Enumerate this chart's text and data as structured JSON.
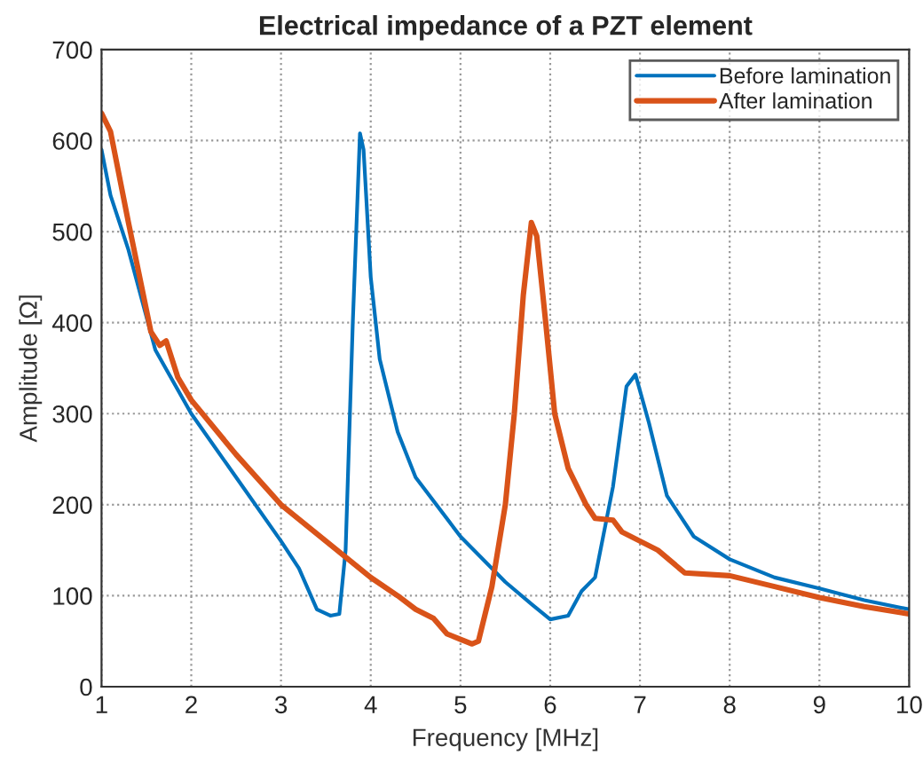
{
  "chart_data": {
    "type": "line",
    "title": "Electrical impedance of a PZT element",
    "xlabel": "Frequency [MHz]",
    "ylabel": "Amplitude [Ω]",
    "xlim": [
      1,
      10
    ],
    "ylim": [
      0,
      700
    ],
    "xticks": [
      1,
      2,
      3,
      4,
      5,
      6,
      7,
      8,
      9,
      10
    ],
    "yticks": [
      0,
      100,
      200,
      300,
      400,
      500,
      600,
      700
    ],
    "grid": true,
    "legend": "top right",
    "line_style": "solid",
    "marker": "none",
    "series": [
      {
        "name": "Before lamination",
        "color": "#0072bd",
        "x": [
          1,
          1.1,
          1.3,
          1.6,
          2,
          2.5,
          3,
          3.2,
          3.4,
          3.55,
          3.65,
          3.72,
          3.8,
          3.88,
          3.92,
          4.0,
          4.1,
          4.3,
          4.5,
          5,
          5.5,
          5.8,
          6,
          6.2,
          6.35,
          6.5,
          6.7,
          6.85,
          6.95,
          7.1,
          7.3,
          7.6,
          8,
          8.5,
          9,
          9.5,
          10
        ],
        "values": [
          590,
          540,
          480,
          370,
          300,
          230,
          160,
          130,
          85,
          78,
          80,
          150,
          400,
          608,
          590,
          450,
          360,
          280,
          230,
          165,
          115,
          90,
          74,
          78,
          105,
          120,
          220,
          330,
          343,
          290,
          210,
          165,
          140,
          120,
          108,
          95,
          85
        ]
      },
      {
        "name": "After lamination",
        "color": "#d95319",
        "x": [
          1,
          1.1,
          1.3,
          1.55,
          1.65,
          1.72,
          1.85,
          2,
          2.5,
          3,
          3.5,
          4,
          4.3,
          4.5,
          4.7,
          4.85,
          5,
          5.13,
          5.2,
          5.35,
          5.5,
          5.6,
          5.7,
          5.79,
          5.85,
          5.95,
          6.05,
          6.2,
          6.4,
          6.5,
          6.7,
          6.8,
          7,
          7.2,
          7.5,
          8,
          8.5,
          9,
          9.5,
          10
        ],
        "values": [
          630,
          610,
          510,
          390,
          375,
          380,
          340,
          315,
          255,
          200,
          160,
          120,
          100,
          85,
          75,
          58,
          52,
          47,
          50,
          110,
          200,
          300,
          430,
          510,
          495,
          400,
          300,
          240,
          200,
          185,
          183,
          170,
          160,
          150,
          125,
          122,
          110,
          98,
          88,
          80
        ]
      }
    ]
  }
}
